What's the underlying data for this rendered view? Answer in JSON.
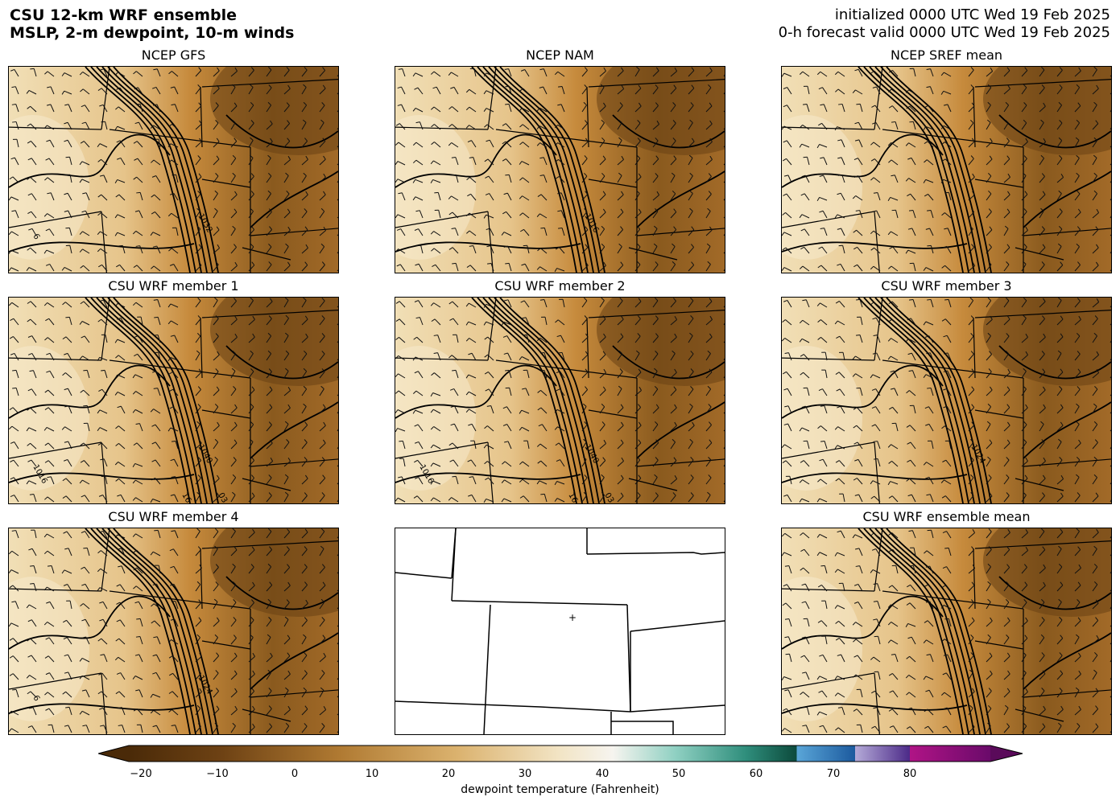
{
  "header": {
    "title_line1": "CSU 12-km WRF ensemble",
    "title_line2": "MSLP, 2-m dewpoint, 10-m winds",
    "init_line": "initialized 0000 UTC Wed 19 Feb 2025",
    "valid_line": "0-h forecast valid 0000 UTC Wed 19 Feb 2025"
  },
  "panels": [
    {
      "title": "NCEP GFS",
      "contour_labels": [
        "1032",
        "6"
      ]
    },
    {
      "title": "NCEP NAM",
      "contour_labels": [
        "1016"
      ]
    },
    {
      "title": "NCEP SREF mean",
      "contour_labels": []
    },
    {
      "title": "CSU WRF member 1",
      "contour_labels": [
        "1040",
        "1016",
        "16",
        "03"
      ]
    },
    {
      "title": "CSU WRF member 2",
      "contour_labels": [
        "1040",
        "1016",
        "16",
        "03"
      ]
    },
    {
      "title": "CSU WRF member 3",
      "contour_labels": [
        "1024"
      ]
    },
    {
      "title": "CSU WRF member 4",
      "contour_labels": [
        "1024",
        "6"
      ]
    },
    {
      "title": "",
      "contour_labels": []
    },
    {
      "title": "CSU WRF ensemble mean",
      "contour_labels": []
    }
  ],
  "colorbar": {
    "ticks": [
      "−20",
      "−10",
      "0",
      "10",
      "20",
      "30",
      "40",
      "50",
      "60",
      "70",
      "80"
    ],
    "label": "dewpoint temperature (Fahrenheit)",
    "colors": {
      "dry": "#4a2a08",
      "brown": "#8a5a1c",
      "tan": "#d9a75a",
      "cream": "#f5ecd6",
      "teal": "#5fb7a8",
      "darkgreen": "#0c4a3c",
      "blue": "#2e7bb8",
      "navy": "#1c3e88",
      "lavender": "#9a90c8",
      "purple": "#4c2a88",
      "magenta": "#a0127c",
      "darkpurple": "#5a0a5a"
    }
  }
}
